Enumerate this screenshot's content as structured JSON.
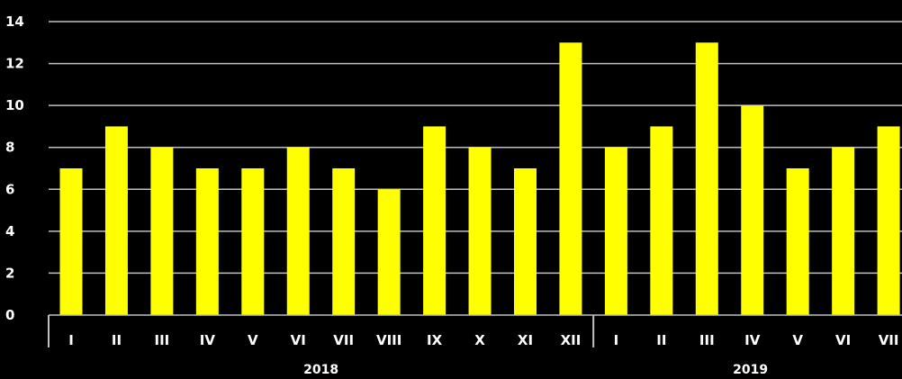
{
  "colors": {
    "background": "#000000",
    "bar": "#ffff00",
    "grid": "#bfbfbf",
    "text": "#ffffff"
  },
  "chart_data": {
    "type": "bar",
    "title": "",
    "xlabel": "",
    "ylabel": "",
    "ylim": [
      0,
      14
    ],
    "yticks": [
      0,
      2,
      4,
      6,
      8,
      10,
      12,
      14
    ],
    "grid": true,
    "legend": "none",
    "groups": [
      {
        "label": "2018",
        "categories": [
          "I",
          "II",
          "III",
          "IV",
          "V",
          "VI",
          "VII",
          "VIII",
          "IX",
          "X",
          "XI",
          "XII"
        ]
      },
      {
        "label": "2019",
        "categories": [
          "I",
          "II",
          "III",
          "IV",
          "V",
          "VI",
          "VII"
        ]
      }
    ],
    "values": [
      7,
      9,
      8,
      7,
      7,
      8,
      7,
      6,
      9,
      8,
      7,
      13,
      8,
      9,
      13,
      10,
      7,
      8,
      9
    ]
  }
}
